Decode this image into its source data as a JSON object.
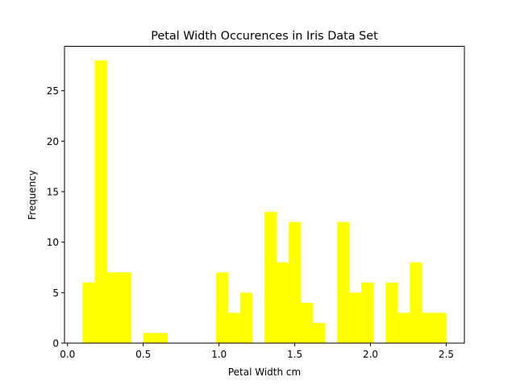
{
  "chart_data": {
    "type": "bar",
    "title": "Petal Width Occurences in Iris Data Set",
    "xlabel": "Petal Width cm",
    "ylabel": "Frequency",
    "xlim": [
      -0.02,
      2.62
    ],
    "ylim": [
      0,
      29.4
    ],
    "xticks": [
      0.0,
      0.5,
      1.0,
      1.5,
      2.0,
      2.5
    ],
    "xtick_labels": [
      "0.0",
      "0.5",
      "1.0",
      "1.5",
      "2.0",
      "2.5"
    ],
    "yticks": [
      0,
      5,
      10,
      15,
      20,
      25
    ],
    "ytick_labels": [
      "0",
      "5",
      "10",
      "15",
      "20",
      "25"
    ],
    "bar_color": "#ffff00",
    "grid": false,
    "bins": [
      {
        "x0": 0.1,
        "x1": 0.18,
        "count": 6
      },
      {
        "x0": 0.18,
        "x1": 0.26,
        "count": 28
      },
      {
        "x0": 0.26,
        "x1": 0.34,
        "count": 7
      },
      {
        "x0": 0.34,
        "x1": 0.42,
        "count": 7
      },
      {
        "x0": 0.42,
        "x1": 0.5,
        "count": 0
      },
      {
        "x0": 0.5,
        "x1": 0.58,
        "count": 1
      },
      {
        "x0": 0.58,
        "x1": 0.66,
        "count": 1
      },
      {
        "x0": 0.66,
        "x1": 0.74,
        "count": 0
      },
      {
        "x0": 0.74,
        "x1": 0.82,
        "count": 0
      },
      {
        "x0": 0.82,
        "x1": 0.9,
        "count": 0
      },
      {
        "x0": 0.9,
        "x1": 0.98,
        "count": 0
      },
      {
        "x0": 0.98,
        "x1": 1.06,
        "count": 7
      },
      {
        "x0": 1.06,
        "x1": 1.14,
        "count": 3
      },
      {
        "x0": 1.14,
        "x1": 1.22,
        "count": 5
      },
      {
        "x0": 1.22,
        "x1": 1.3,
        "count": 0
      },
      {
        "x0": 1.3,
        "x1": 1.38,
        "count": 13
      },
      {
        "x0": 1.38,
        "x1": 1.46,
        "count": 8
      },
      {
        "x0": 1.46,
        "x1": 1.54,
        "count": 12
      },
      {
        "x0": 1.54,
        "x1": 1.62,
        "count": 4
      },
      {
        "x0": 1.62,
        "x1": 1.7,
        "count": 2
      },
      {
        "x0": 1.7,
        "x1": 1.78,
        "count": 0
      },
      {
        "x0": 1.78,
        "x1": 1.86,
        "count": 12
      },
      {
        "x0": 1.86,
        "x1": 1.94,
        "count": 5
      },
      {
        "x0": 1.94,
        "x1": 2.02,
        "count": 6
      },
      {
        "x0": 2.02,
        "x1": 2.1,
        "count": 0
      },
      {
        "x0": 2.1,
        "x1": 2.18,
        "count": 6
      },
      {
        "x0": 2.18,
        "x1": 2.26,
        "count": 3
      },
      {
        "x0": 2.26,
        "x1": 2.34,
        "count": 8
      },
      {
        "x0": 2.34,
        "x1": 2.42,
        "count": 3
      },
      {
        "x0": 2.42,
        "x1": 2.5,
        "count": 3
      }
    ]
  }
}
